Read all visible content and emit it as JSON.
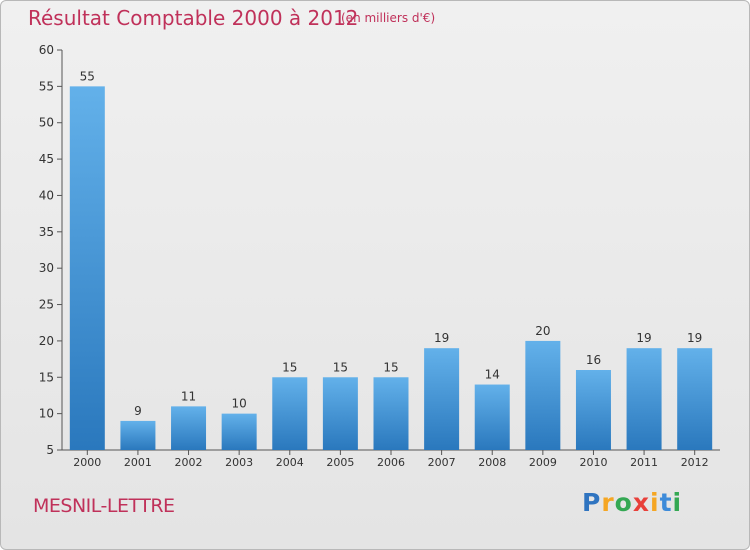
{
  "header": {
    "title": "Résultat Comptable 2000 à 2012",
    "subtitle": "(en milliers d'€)"
  },
  "footer": {
    "place": "MESNIL-LETTRE",
    "logo_letters": [
      "P",
      "r",
      "o",
      "x",
      "i",
      "t",
      "i"
    ],
    "logo_colors": [
      "#2f74c0",
      "#f5a623",
      "#34a853",
      "#e8403a",
      "#f5a623",
      "#3d8bd9",
      "#34a853"
    ]
  },
  "colors": {
    "title": "#c0315a",
    "bar_top": "#63b1ea",
    "bar_bottom": "#2a78bd",
    "axis": "#555555",
    "text": "#333333"
  },
  "chart_data": {
    "type": "bar",
    "categories": [
      "2000",
      "2001",
      "2002",
      "2003",
      "2004",
      "2005",
      "2006",
      "2007",
      "2008",
      "2009",
      "2010",
      "2011",
      "2012"
    ],
    "values": [
      55,
      9,
      11,
      10,
      15,
      15,
      15,
      19,
      14,
      20,
      16,
      19,
      19
    ],
    "y_ticks": [
      "5",
      "10",
      "15",
      "20",
      "25",
      "30",
      "35",
      "40",
      "45",
      "50",
      "55",
      "60"
    ],
    "ylim": [
      5,
      60
    ],
    "grid": false
  }
}
